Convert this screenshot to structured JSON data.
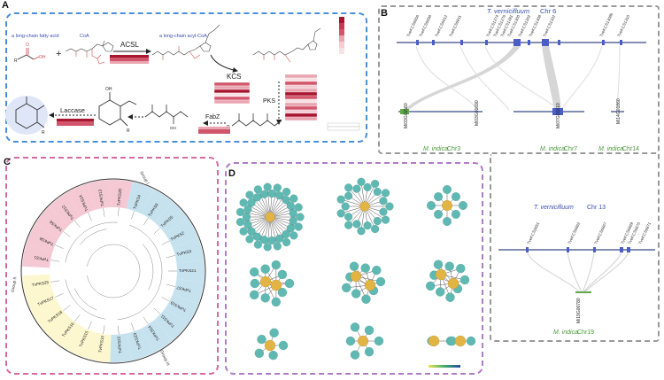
{
  "panels": {
    "a": {
      "letter": "A",
      "border_color": "#4a90d9"
    },
    "b": {
      "letter": "B",
      "border_color": "#999999"
    },
    "c": {
      "letter": "C",
      "border_color": "#d66ba0"
    },
    "d": {
      "letter": "D",
      "border_color": "#b07cc6"
    }
  },
  "pathway": {
    "substrate_label": "a long-chain fatty acid",
    "coa_label": "CoA",
    "product_label": "a long-chain acyl-CoA",
    "plus": "+",
    "enzymes": {
      "acsl": "ACSL",
      "kcs": "KCS",
      "pks": "PKS",
      "fabz": "FabZ",
      "laccase": "Laccase"
    },
    "atom_r": "R",
    "atom_oh": "OH",
    "atom_o": "O"
  },
  "heatmap_colors": [
    "#f7e1e4",
    "#e9a6b1",
    "#d1566b",
    "#a8152f"
  ],
  "synteny_top": {
    "title_species": "T. vernicifluum",
    "title_chr": "Chr 6",
    "genes": [
      "TveKCS6656",
      "TveKCS6658",
      "TveKCS6612",
      "TveKCS6811",
      "TveKCS1274",
      "TveKCS1276",
      "TveKCS1281",
      "TveKCS1300",
      "TveKCS1302",
      "TveKCS1308",
      "TveKCS1322",
      "TveKCS1308b",
      "TveKCS1310"
    ],
    "bottom_labels": [
      {
        "id": "Mi03G01560",
        "species": "M. indica",
        "chr": "Chr3"
      },
      {
        "id": "Mi03G01690",
        "species": "",
        "chr": ""
      },
      {
        "id": "Mi07G01810",
        "species": "M. indica",
        "chr": "Chr7"
      },
      {
        "id": "Mi14G01860",
        "species": "M. indica",
        "chr": "Chr14"
      }
    ]
  },
  "synteny_bottom": {
    "title_species": "T. vernicifluum",
    "title_chr": "Chr 13",
    "genes": [
      "TveKCS3651",
      "TveKCS6862",
      "TveKCS6867",
      "TveKCS6869",
      "TveKCS6870",
      "TveKCS6871"
    ],
    "target_id": "Mi19G00780",
    "target_species": "M. indica",
    "target_chr": "Chr19"
  },
  "tree": {
    "group_labels": [
      "Group I",
      "Group II",
      "Group III"
    ],
    "leaves": [
      "TvPKS1",
      "TvPKS8",
      "TvPKS6",
      "TvPKS12",
      "TvPKS14",
      "TvPKS13",
      "TvPKS20",
      "TvPKS4",
      "TvPKS9",
      "TvPKS5",
      "TvPKS2",
      "TvPKS3",
      "TvPKS21",
      "TvPKS7",
      "TvPKS19",
      "TvPKS11",
      "TvPKS24",
      "TvPKS23",
      "TvPKS22",
      "TvPKS10",
      "TvPKS15",
      "TvPKS16",
      "TvPKS18",
      "TvPKS17",
      "TvPKS25"
    ],
    "group_colors": {
      "g1": "#f4c9d4",
      "g2": "#fdf7cf",
      "g3": "#c7e2ef"
    }
  },
  "network": {
    "node_color": "#5fb9b2",
    "hub_color": "#e2b444",
    "edge_color": "#2a2a2a",
    "legend_colors": [
      "#f2e14c",
      "#3fae6f",
      "#2a4aa0"
    ]
  }
}
